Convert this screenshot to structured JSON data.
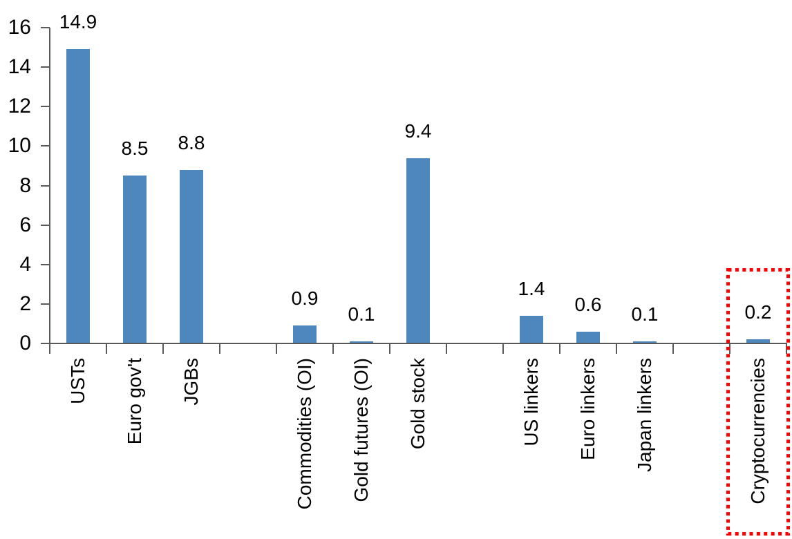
{
  "chart_data": {
    "type": "bar",
    "title": "",
    "xlabel": "",
    "ylabel": "",
    "categories": [
      "USTs",
      "Euro gov't",
      "JGBs",
      "Commodities (OI)",
      "Gold futures (OI)",
      "Gold stock",
      "US linkers",
      "Euro linkers",
      "Japan linkers",
      "Cryptocurrencies"
    ],
    "values": [
      14.9,
      8.5,
      8.8,
      0.9,
      0.1,
      9.4,
      1.4,
      0.6,
      0.1,
      0.2
    ],
    "value_labels": [
      "14.9",
      "8.5",
      "8.8",
      "0.9",
      "0.1",
      "9.4",
      "1.4",
      "0.6",
      "0.1",
      "0.2"
    ],
    "slots": [
      0,
      1,
      2,
      4,
      5,
      6,
      8,
      9,
      10,
      12
    ],
    "total_slots": 13,
    "ylim": [
      0,
      16
    ],
    "ytick_interval": 2,
    "ytick_labels": [
      "0",
      "2",
      "4",
      "6",
      "8",
      "10",
      "12",
      "14",
      "16"
    ],
    "grid": false,
    "legend": false,
    "category_labels_rotated_degrees": 90,
    "highlight": {
      "category": "Cryptocurrencies",
      "shape": "dotted-rectangle",
      "color": "#FF0000"
    },
    "colors": {
      "bar": "#4E86BE",
      "axis": "#595959",
      "text": "#000000",
      "background": "#FFFFFF"
    }
  }
}
